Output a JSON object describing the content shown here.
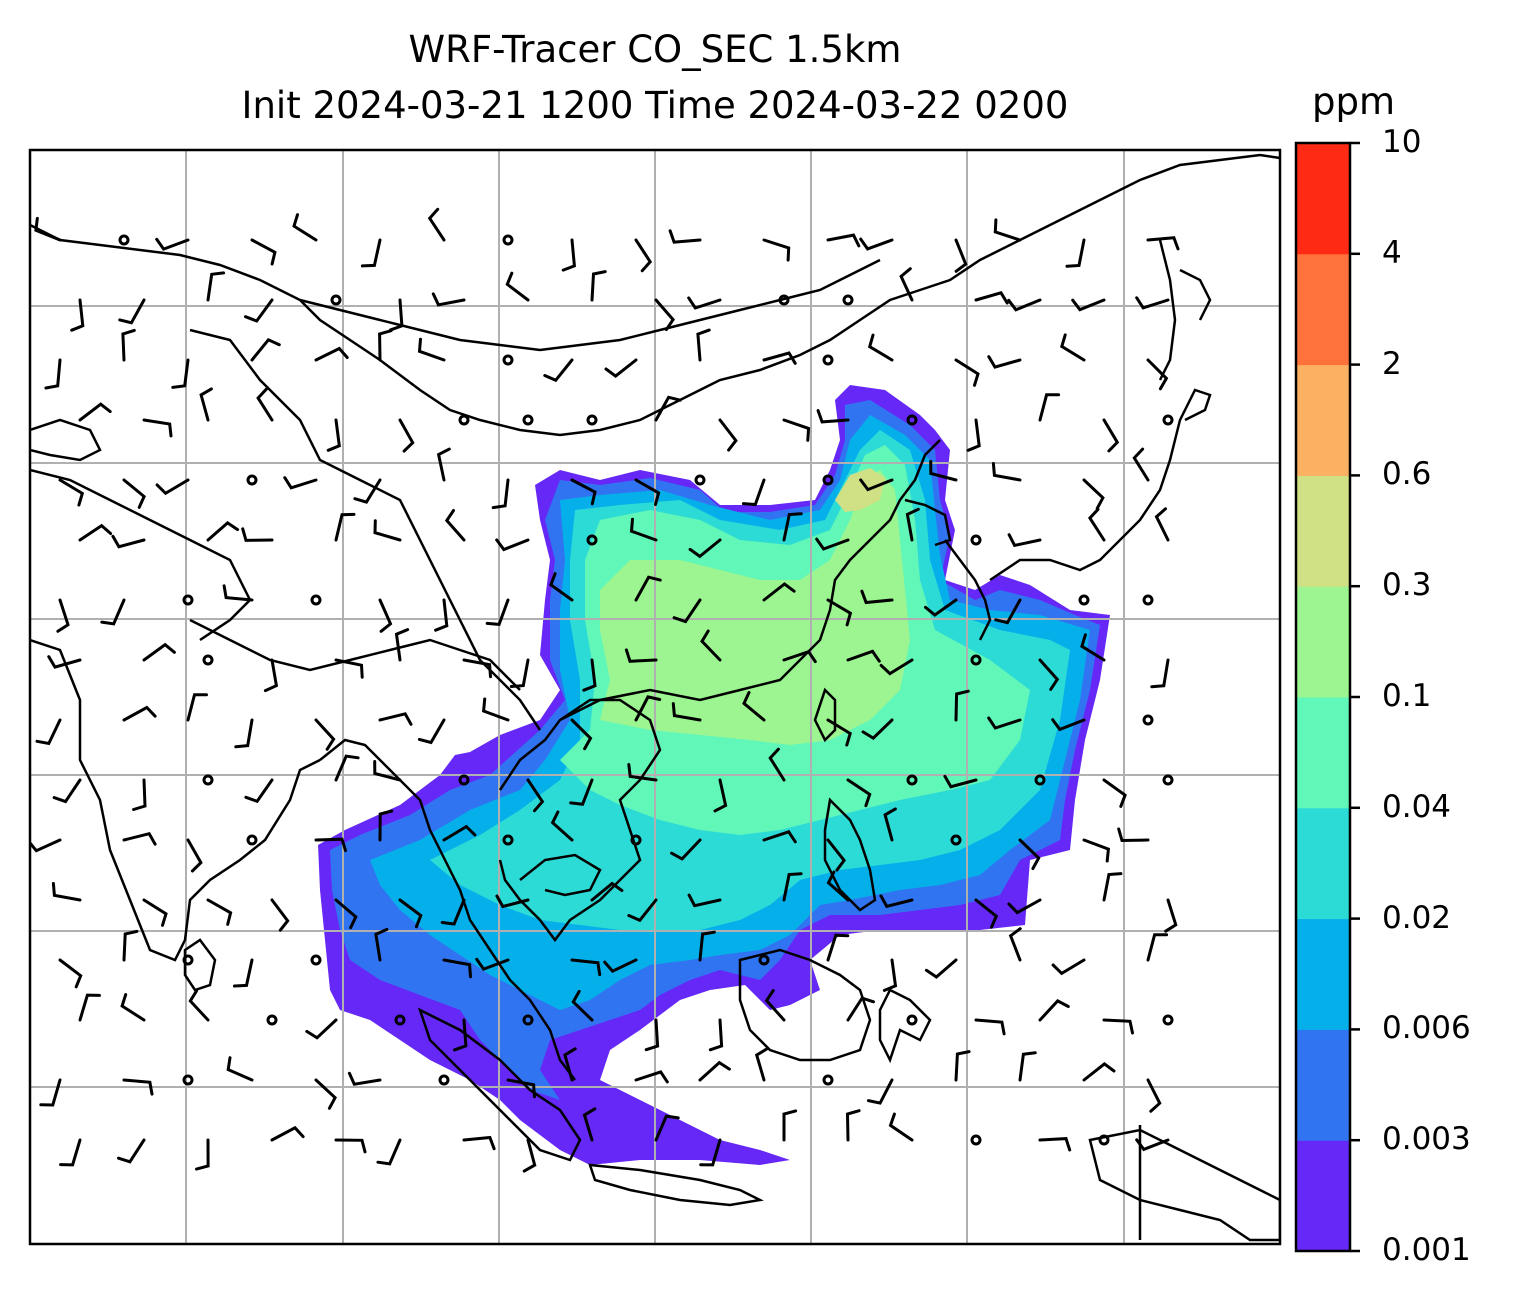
{
  "title": {
    "line1": "WRF-Tracer CO_SEC 1.5km",
    "line2": "Init 2024-03-21 1200 Time 2024-03-22 0200"
  },
  "colorbar": {
    "unit": "ppm",
    "tick_labels": [
      "0.001",
      "0.003",
      "0.006",
      "0.02",
      "0.04",
      "0.1",
      "0.3",
      "0.6",
      "2",
      "4",
      "10"
    ],
    "colors": [
      "#6528f6",
      "#3174f2",
      "#05b0ea",
      "#2ddbd6",
      "#61f7b8",
      "#9cf590",
      "#d0e085",
      "#fcb062",
      "#ff723c",
      "#ff2a14"
    ]
  },
  "map": {
    "gridlines": true,
    "fill_field": "CO_SEC tracer concentration (ppm)",
    "overlay": "wind barbs",
    "coastlines_color": "#000000",
    "grid_color": "#b0b0b0"
  }
}
